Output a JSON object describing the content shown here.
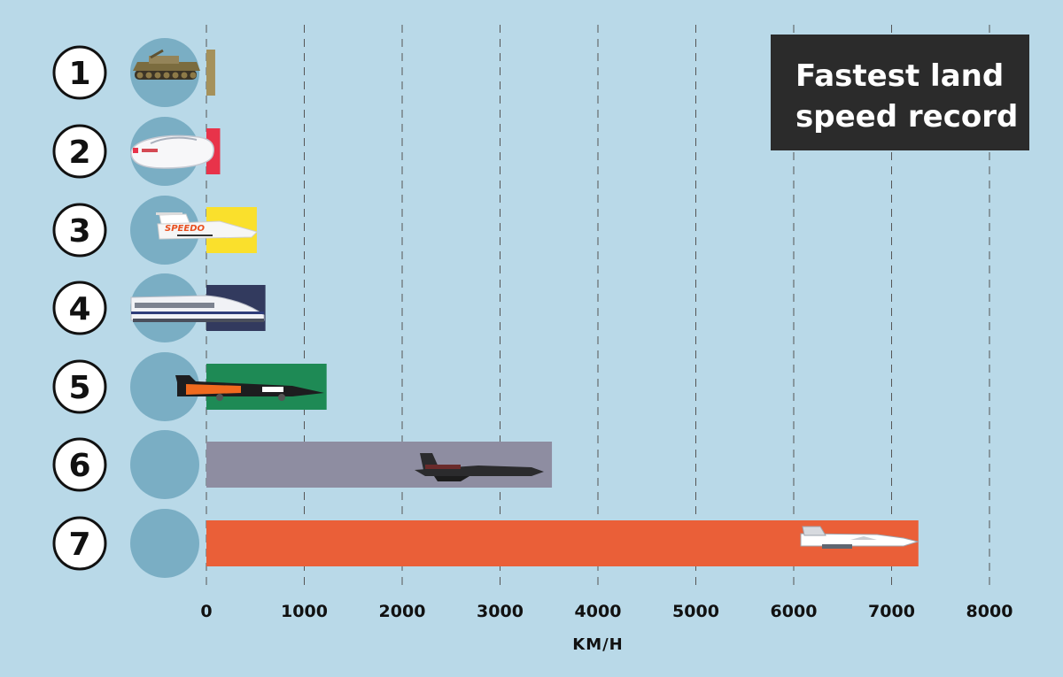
{
  "chart_data": {
    "type": "bar",
    "orientation": "horizontal",
    "title": "Fastest land speed record",
    "title_lines": [
      "Fastest land",
      "speed record"
    ],
    "xlabel": "KM/H",
    "xlim": [
      0,
      8000
    ],
    "x_ticks": [
      0,
      1000,
      2000,
      3000,
      4000,
      5000,
      6000,
      7000,
      8000
    ],
    "grid": "vertical-dashed",
    "categories": [
      "1",
      "2",
      "3",
      "4",
      "5",
      "6",
      "7"
    ],
    "values": [
      90,
      140,
      515,
      603,
      1228,
      3530,
      7274
    ],
    "colors": [
      "#a5915a",
      "#e8334a",
      "#fae02c",
      "#323a5e",
      "#1e8a55",
      "#8e8da1",
      "#ea5f38"
    ],
    "icons": [
      "tank-icon",
      "streamliner-car-icon",
      "speedboat-icon",
      "maglev-train-icon",
      "rocket-car-icon",
      "sr71-jet-icon",
      "x15-rocket-plane-icon"
    ],
    "boat_text": "SPEEDO"
  },
  "colors": {
    "background": "#b9d9e8",
    "circle_fill": "#7aaec4",
    "grid": "#555555",
    "title_box": "#2b2b2b"
  }
}
